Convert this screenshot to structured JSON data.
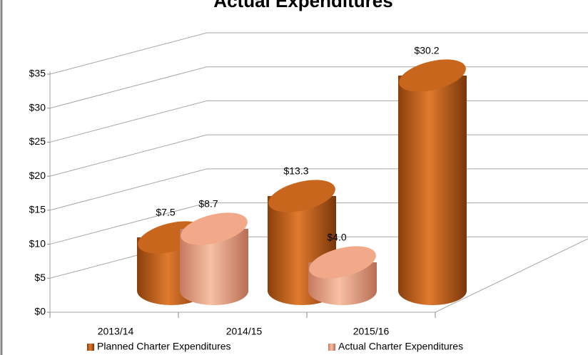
{
  "chart_data": {
    "type": "bar3d",
    "title": "Actual Expenditures",
    "categories": [
      "2013/14",
      "2014/15",
      "2015/16"
    ],
    "series": [
      {
        "name": "Planned Charter Expenditures",
        "color": "#c8661e",
        "values": [
          7.5,
          13.3,
          30.2
        ],
        "value_labels": [
          "$7.5",
          "$13.3",
          "$30.2"
        ]
      },
      {
        "name": "Actual Charter Expenditures",
        "color": "#f2a98a",
        "values": [
          8.7,
          4.0,
          null
        ],
        "value_labels": [
          "$8.7",
          "$4.0",
          null
        ]
      }
    ],
    "ylim": [
      0,
      35
    ],
    "yticks": [
      {
        "value": 0,
        "label": "$0"
      },
      {
        "value": 5,
        "label": "$5"
      },
      {
        "value": 10,
        "label": "$10"
      },
      {
        "value": 15,
        "label": "$15"
      },
      {
        "value": 20,
        "label": "$20"
      },
      {
        "value": 25,
        "label": "$25"
      },
      {
        "value": 30,
        "label": "$30"
      },
      {
        "value": 35,
        "label": "$35"
      }
    ],
    "grid": true
  }
}
